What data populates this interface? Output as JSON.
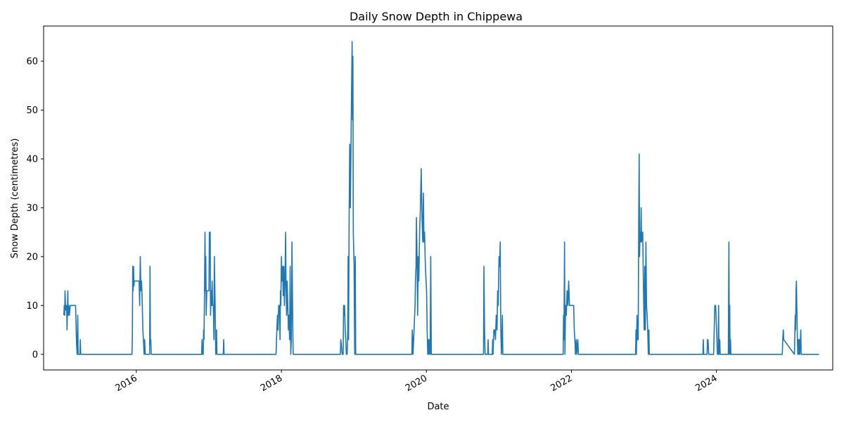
{
  "chart_data": {
    "type": "line",
    "title": "Daily Snow Depth in Chippewa",
    "xlabel": "Date",
    "ylabel": "Snow Depth (centimetres)",
    "x_ticks": [
      "2016-01-01",
      "2018-01-01",
      "2020-01-01",
      "2022-01-01",
      "2024-01-01"
    ],
    "x_tick_labels": [
      "2016",
      "2018",
      "2020",
      "2022",
      "2024"
    ],
    "y_ticks": [
      0,
      10,
      20,
      30,
      40,
      50,
      60
    ],
    "xlim": [
      "2014-09-21",
      "2025-08-09"
    ],
    "ylim": [
      -3.2,
      67.2
    ],
    "grid": false,
    "color": "#1f77b4",
    "series": [
      {
        "points": [
          [
            "2015-01-01",
            8
          ],
          [
            "2015-01-03",
            10
          ],
          [
            "2015-01-05",
            8
          ],
          [
            "2015-01-07",
            13
          ],
          [
            "2015-01-09",
            10
          ],
          [
            "2015-01-12",
            9
          ],
          [
            "2015-01-15",
            10
          ],
          [
            "2015-01-17",
            5
          ],
          [
            "2015-01-19",
            9
          ],
          [
            "2015-01-21",
            13
          ],
          [
            "2015-01-23",
            8
          ],
          [
            "2015-01-26",
            10
          ],
          [
            "2015-01-29",
            8
          ],
          [
            "2015-02-02",
            10
          ],
          [
            "2015-02-20",
            10
          ],
          [
            "2015-03-01",
            10
          ],
          [
            "2015-03-03",
            7
          ],
          [
            "2015-03-06",
            2
          ],
          [
            "2015-03-09",
            0
          ],
          [
            "2015-03-12",
            8
          ],
          [
            "2015-03-14",
            0
          ],
          [
            "2015-03-23",
            0
          ],
          [
            "2015-03-25",
            3
          ],
          [
            "2015-03-27",
            0
          ],
          [
            "2015-12-10",
            0
          ],
          [
            "2015-12-12",
            3
          ],
          [
            "2015-12-14",
            18
          ],
          [
            "2015-12-16",
            13
          ],
          [
            "2015-12-18",
            18
          ],
          [
            "2015-12-20",
            14
          ],
          [
            "2015-12-22",
            15
          ],
          [
            "2016-01-15",
            15
          ],
          [
            "2016-01-18",
            10
          ],
          [
            "2016-01-21",
            20
          ],
          [
            "2016-01-24",
            13
          ],
          [
            "2016-01-27",
            15
          ],
          [
            "2016-01-30",
            12
          ],
          [
            "2016-02-03",
            5
          ],
          [
            "2016-02-06",
            3
          ],
          [
            "2016-02-09",
            0
          ],
          [
            "2016-02-12",
            3
          ],
          [
            "2016-02-15",
            0
          ],
          [
            "2016-03-08",
            0
          ],
          [
            "2016-03-10",
            18
          ],
          [
            "2016-03-12",
            2
          ],
          [
            "2016-03-14",
            3
          ],
          [
            "2016-03-16",
            0
          ],
          [
            "2016-11-25",
            0
          ],
          [
            "2016-11-27",
            3
          ],
          [
            "2016-11-29",
            0
          ],
          [
            "2016-12-03",
            0
          ],
          [
            "2016-12-05",
            5
          ],
          [
            "2016-12-07",
            3
          ],
          [
            "2016-12-10",
            15
          ],
          [
            "2016-12-12",
            25
          ],
          [
            "2016-12-14",
            13
          ],
          [
            "2016-12-16",
            20
          ],
          [
            "2016-12-18",
            8
          ],
          [
            "2016-12-21",
            13
          ],
          [
            "2017-01-01",
            13
          ],
          [
            "2017-01-03",
            25
          ],
          [
            "2017-01-05",
            20
          ],
          [
            "2017-01-07",
            25
          ],
          [
            "2017-01-09",
            8
          ],
          [
            "2017-01-11",
            13
          ],
          [
            "2017-01-14",
            10
          ],
          [
            "2017-01-17",
            15
          ],
          [
            "2017-01-20",
            10
          ],
          [
            "2017-01-23",
            10
          ],
          [
            "2017-01-26",
            3
          ],
          [
            "2017-01-28",
            20
          ],
          [
            "2017-02-01",
            10
          ],
          [
            "2017-02-04",
            0
          ],
          [
            "2017-02-08",
            5
          ],
          [
            "2017-02-10",
            0
          ],
          [
            "2017-03-14",
            0
          ],
          [
            "2017-03-16",
            3
          ],
          [
            "2017-03-18",
            0
          ],
          [
            "2017-12-05",
            0
          ],
          [
            "2017-12-07",
            3
          ],
          [
            "2017-12-09",
            5
          ],
          [
            "2017-12-12",
            8
          ],
          [
            "2017-12-15",
            5
          ],
          [
            "2017-12-18",
            10
          ],
          [
            "2017-12-22",
            10
          ],
          [
            "2017-12-25",
            3
          ],
          [
            "2017-12-27",
            13
          ],
          [
            "2017-12-29",
            10
          ],
          [
            "2018-01-01",
            20
          ],
          [
            "2018-01-04",
            15
          ],
          [
            "2018-01-07",
            18
          ],
          [
            "2018-01-10",
            12
          ],
          [
            "2018-01-13",
            18
          ],
          [
            "2018-01-16",
            10
          ],
          [
            "2018-01-19",
            15
          ],
          [
            "2018-01-22",
            25
          ],
          [
            "2018-01-24",
            15
          ],
          [
            "2018-01-27",
            8
          ],
          [
            "2018-01-30",
            15
          ],
          [
            "2018-02-02",
            10
          ],
          [
            "2018-02-05",
            5
          ],
          [
            "2018-02-08",
            8
          ],
          [
            "2018-02-11",
            3
          ],
          [
            "2018-02-14",
            18
          ],
          [
            "2018-02-17",
            0
          ],
          [
            "2018-02-20",
            3
          ],
          [
            "2018-02-23",
            23
          ],
          [
            "2018-02-26",
            10
          ],
          [
            "2018-03-01",
            0
          ],
          [
            "2018-10-25",
            0
          ],
          [
            "2018-10-27",
            3
          ],
          [
            "2018-10-30",
            2
          ],
          [
            "2018-11-03",
            0
          ],
          [
            "2018-11-08",
            0
          ],
          [
            "2018-11-10",
            10
          ],
          [
            "2018-11-12",
            8
          ],
          [
            "2018-11-15",
            10
          ],
          [
            "2018-11-18",
            5
          ],
          [
            "2018-11-21",
            3
          ],
          [
            "2018-11-24",
            0
          ],
          [
            "2018-11-28",
            0
          ],
          [
            "2018-12-01",
            5
          ],
          [
            "2018-12-03",
            20
          ],
          [
            "2018-12-05",
            3
          ],
          [
            "2018-12-08",
            28
          ],
          [
            "2018-12-11",
            43
          ],
          [
            "2018-12-14",
            30
          ],
          [
            "2018-12-17",
            41
          ],
          [
            "2018-12-20",
            53
          ],
          [
            "2018-12-23",
            64
          ],
          [
            "2018-12-25",
            48
          ],
          [
            "2018-12-27",
            61
          ],
          [
            "2018-12-29",
            25
          ],
          [
            "2019-01-02",
            18
          ],
          [
            "2019-01-05",
            0
          ],
          [
            "2019-01-08",
            20
          ],
          [
            "2019-01-10",
            0
          ],
          [
            "2019-10-20",
            0
          ],
          [
            "2019-10-22",
            5
          ],
          [
            "2019-10-24",
            3
          ],
          [
            "2019-10-26",
            0
          ],
          [
            "2019-11-05",
            10
          ],
          [
            "2019-11-07",
            15
          ],
          [
            "2019-11-10",
            18
          ],
          [
            "2019-11-12",
            28
          ],
          [
            "2019-11-15",
            20
          ],
          [
            "2019-11-18",
            8
          ],
          [
            "2019-11-21",
            20
          ],
          [
            "2019-11-24",
            15
          ],
          [
            "2019-11-28",
            25
          ],
          [
            "2019-12-02",
            30
          ],
          [
            "2019-12-06",
            38
          ],
          [
            "2019-12-10",
            28
          ],
          [
            "2019-12-14",
            23
          ],
          [
            "2019-12-17",
            33
          ],
          [
            "2019-12-20",
            23
          ],
          [
            "2019-12-23",
            25
          ],
          [
            "2019-12-27",
            18
          ],
          [
            "2020-01-02",
            13
          ],
          [
            "2020-01-05",
            5
          ],
          [
            "2020-01-08",
            0
          ],
          [
            "2020-01-11",
            3
          ],
          [
            "2020-01-14",
            0
          ],
          [
            "2020-01-17",
            3
          ],
          [
            "2020-01-20",
            0
          ],
          [
            "2020-01-23",
            20
          ],
          [
            "2020-01-26",
            0
          ],
          [
            "2020-10-15",
            0
          ],
          [
            "2020-10-17",
            18
          ],
          [
            "2020-10-20",
            5
          ],
          [
            "2020-10-23",
            0
          ],
          [
            "2020-11-05",
            0
          ],
          [
            "2020-11-07",
            3
          ],
          [
            "2020-11-09",
            0
          ],
          [
            "2020-11-28",
            0
          ],
          [
            "2020-11-30",
            3
          ],
          [
            "2020-12-02",
            0
          ],
          [
            "2020-12-06",
            5
          ],
          [
            "2020-12-10",
            5
          ],
          [
            "2020-12-14",
            3
          ],
          [
            "2020-12-18",
            8
          ],
          [
            "2020-12-22",
            5
          ],
          [
            "2020-12-25",
            13
          ],
          [
            "2020-12-28",
            10
          ],
          [
            "2021-01-01",
            20
          ],
          [
            "2021-01-04",
            18
          ],
          [
            "2021-01-07",
            23
          ],
          [
            "2021-01-10",
            5
          ],
          [
            "2021-01-13",
            0
          ],
          [
            "2021-01-18",
            8
          ],
          [
            "2021-01-20",
            0
          ],
          [
            "2021-11-20",
            0
          ],
          [
            "2021-11-22",
            8
          ],
          [
            "2021-11-24",
            3
          ],
          [
            "2021-11-27",
            23
          ],
          [
            "2021-11-29",
            0
          ],
          [
            "2021-12-02",
            10
          ],
          [
            "2021-12-06",
            8
          ],
          [
            "2021-12-10",
            13
          ],
          [
            "2021-12-14",
            10
          ],
          [
            "2021-12-18",
            15
          ],
          [
            "2021-12-22",
            10
          ],
          [
            "2022-01-12",
            10
          ],
          [
            "2022-01-15",
            5
          ],
          [
            "2022-01-18",
            3
          ],
          [
            "2022-01-21",
            0
          ],
          [
            "2022-01-25",
            3
          ],
          [
            "2022-01-28",
            0
          ],
          [
            "2022-02-02",
            3
          ],
          [
            "2022-02-05",
            0
          ],
          [
            "2022-11-20",
            0
          ],
          [
            "2022-11-22",
            5
          ],
          [
            "2022-11-24",
            0
          ],
          [
            "2022-11-27",
            8
          ],
          [
            "2022-11-30",
            3
          ],
          [
            "2022-12-03",
            3
          ],
          [
            "2022-12-06",
            30
          ],
          [
            "2022-12-08",
            41
          ],
          [
            "2022-12-10",
            20
          ],
          [
            "2022-12-12",
            25
          ],
          [
            "2022-12-15",
            23
          ],
          [
            "2022-12-18",
            30
          ],
          [
            "2022-12-20",
            23
          ],
          [
            "2022-12-23",
            25
          ],
          [
            "2022-12-26",
            25
          ],
          [
            "2022-12-29",
            15
          ],
          [
            "2023-01-02",
            5
          ],
          [
            "2023-01-05",
            18
          ],
          [
            "2023-01-08",
            5
          ],
          [
            "2023-01-11",
            23
          ],
          [
            "2023-01-14",
            10
          ],
          [
            "2023-01-17",
            8
          ],
          [
            "2023-01-20",
            5
          ],
          [
            "2023-01-23",
            0
          ],
          [
            "2023-01-26",
            5
          ],
          [
            "2023-01-28",
            0
          ],
          [
            "2023-10-25",
            0
          ],
          [
            "2023-10-27",
            3
          ],
          [
            "2023-10-29",
            0
          ],
          [
            "2023-11-15",
            0
          ],
          [
            "2023-11-17",
            3
          ],
          [
            "2023-11-20",
            3
          ],
          [
            "2023-11-23",
            0
          ],
          [
            "2023-12-18",
            0
          ],
          [
            "2023-12-21",
            5
          ],
          [
            "2023-12-24",
            10
          ],
          [
            "2023-12-28",
            10
          ],
          [
            "2024-01-02",
            5
          ],
          [
            "2024-01-06",
            0
          ],
          [
            "2024-01-10",
            0
          ],
          [
            "2024-01-12",
            10
          ],
          [
            "2024-01-14",
            0
          ],
          [
            "2024-01-18",
            3
          ],
          [
            "2024-01-20",
            0
          ],
          [
            "2024-03-01",
            0
          ],
          [
            "2024-03-04",
            23
          ],
          [
            "2024-03-06",
            0
          ],
          [
            "2024-03-08",
            10
          ],
          [
            "2024-03-10",
            0
          ],
          [
            "2024-03-12",
            3
          ],
          [
            "2024-03-14",
            0
          ],
          [
            "2024-11-28",
            0
          ],
          [
            "2024-11-30",
            3
          ],
          [
            "2024-12-03",
            5
          ],
          [
            "2024-12-05",
            3
          ],
          [
            "2025-01-28",
            0
          ],
          [
            "2025-02-01",
            8
          ],
          [
            "2025-02-03",
            5
          ],
          [
            "2025-02-05",
            13
          ],
          [
            "2025-02-07",
            15
          ],
          [
            "2025-02-09",
            10
          ],
          [
            "2025-02-12",
            3
          ],
          [
            "2025-02-14",
            0
          ],
          [
            "2025-02-17",
            3
          ],
          [
            "2025-02-19",
            0
          ],
          [
            "2025-02-22",
            3
          ],
          [
            "2025-02-24",
            0
          ],
          [
            "2025-03-01",
            5
          ],
          [
            "2025-03-03",
            0
          ],
          [
            "2025-06-01",
            0
          ]
        ]
      }
    ]
  }
}
